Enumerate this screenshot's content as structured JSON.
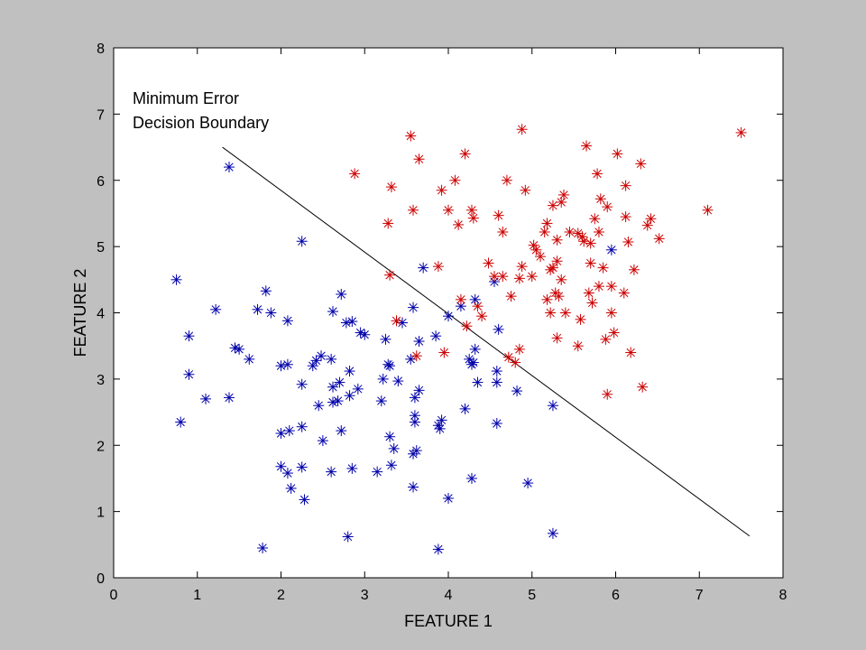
{
  "chart_data": {
    "type": "scatter",
    "title": "",
    "xlabel": "FEATURE 1",
    "ylabel": "FEATURE 2",
    "xlim": [
      0,
      8
    ],
    "ylim": [
      0,
      8
    ],
    "xticks": [
      0,
      1,
      2,
      3,
      4,
      5,
      6,
      7,
      8
    ],
    "yticks": [
      0,
      1,
      2,
      3,
      4,
      5,
      6,
      7,
      8
    ],
    "grid": false,
    "marker": "asterisk",
    "annotation": [
      "Minimum Error",
      "Decision Boundary"
    ],
    "boundary": {
      "x": [
        1.3,
        7.6
      ],
      "y": [
        6.5,
        0.63
      ]
    },
    "series": [
      {
        "color": "#0000aa",
        "points": [
          [
            0.75,
            4.5
          ],
          [
            0.8,
            2.35
          ],
          [
            0.9,
            3.65
          ],
          [
            0.9,
            3.07
          ],
          [
            1.1,
            2.7
          ],
          [
            1.22,
            4.05
          ],
          [
            1.38,
            2.72
          ],
          [
            1.45,
            3.47
          ],
          [
            1.5,
            3.45
          ],
          [
            1.62,
            3.3
          ],
          [
            1.38,
            6.2
          ],
          [
            1.72,
            4.05
          ],
          [
            1.82,
            4.33
          ],
          [
            1.88,
            4.0
          ],
          [
            2.0,
            3.2
          ],
          [
            2.08,
            3.22
          ],
          [
            2.08,
            3.88
          ],
          [
            2.0,
            2.18
          ],
          [
            2.1,
            2.22
          ],
          [
            2.0,
            1.68
          ],
          [
            2.08,
            1.58
          ],
          [
            2.12,
            1.35
          ],
          [
            2.25,
            1.67
          ],
          [
            2.28,
            1.18
          ],
          [
            2.25,
            2.28
          ],
          [
            2.25,
            2.92
          ],
          [
            2.25,
            5.08
          ],
          [
            2.38,
            3.2
          ],
          [
            2.42,
            3.28
          ],
          [
            2.48,
            3.35
          ],
          [
            2.45,
            2.6
          ],
          [
            2.5,
            2.07
          ],
          [
            2.6,
            3.3
          ],
          [
            2.62,
            4.02
          ],
          [
            2.62,
            2.88
          ],
          [
            2.62,
            2.65
          ],
          [
            2.68,
            2.67
          ],
          [
            2.7,
            2.95
          ],
          [
            2.72,
            2.22
          ],
          [
            2.72,
            4.28
          ],
          [
            2.78,
            3.85
          ],
          [
            2.82,
            3.12
          ],
          [
            2.82,
            2.75
          ],
          [
            2.85,
            3.87
          ],
          [
            2.92,
            2.85
          ],
          [
            2.95,
            3.7
          ],
          [
            3.0,
            3.67
          ],
          [
            2.6,
            1.6
          ],
          [
            2.85,
            1.65
          ],
          [
            2.8,
            0.62
          ],
          [
            1.78,
            0.45
          ],
          [
            3.15,
            1.6
          ],
          [
            3.2,
            2.67
          ],
          [
            3.22,
            3.0
          ],
          [
            3.25,
            3.6
          ],
          [
            3.28,
            3.22
          ],
          [
            3.3,
            3.2
          ],
          [
            3.3,
            2.13
          ],
          [
            3.32,
            1.7
          ],
          [
            3.35,
            1.95
          ],
          [
            3.4,
            2.97
          ],
          [
            3.45,
            3.85
          ],
          [
            3.55,
            3.3
          ],
          [
            3.58,
            4.08
          ],
          [
            3.6,
            2.45
          ],
          [
            3.6,
            2.35
          ],
          [
            3.6,
            2.72
          ],
          [
            3.62,
            1.92
          ],
          [
            3.58,
            1.37
          ],
          [
            3.58,
            1.87
          ],
          [
            3.65,
            2.83
          ],
          [
            3.65,
            3.57
          ],
          [
            3.7,
            4.68
          ],
          [
            3.85,
            3.65
          ],
          [
            3.88,
            2.3
          ],
          [
            3.9,
            2.25
          ],
          [
            3.92,
            2.38
          ],
          [
            4.0,
            3.95
          ],
          [
            4.0,
            1.2
          ],
          [
            3.88,
            0.43
          ],
          [
            4.15,
            4.1
          ],
          [
            4.2,
            2.55
          ],
          [
            4.25,
            3.3
          ],
          [
            4.28,
            3.22
          ],
          [
            4.3,
            3.25
          ],
          [
            4.32,
            3.45
          ],
          [
            4.35,
            2.95
          ],
          [
            4.32,
            4.2
          ],
          [
            4.28,
            1.5
          ],
          [
            4.55,
            4.47
          ],
          [
            4.58,
            3.12
          ],
          [
            4.58,
            2.95
          ],
          [
            4.58,
            2.33
          ],
          [
            4.6,
            3.75
          ],
          [
            4.82,
            2.82
          ],
          [
            4.95,
            1.43
          ],
          [
            5.25,
            2.6
          ],
          [
            5.25,
            0.67
          ],
          [
            5.95,
            4.95
          ]
        ]
      },
      {
        "color": "#cc0000",
        "points": [
          [
            2.88,
            6.1
          ],
          [
            3.28,
            5.35
          ],
          [
            3.3,
            4.57
          ],
          [
            3.32,
            5.9
          ],
          [
            3.38,
            3.88
          ],
          [
            3.55,
            6.67
          ],
          [
            3.58,
            5.55
          ],
          [
            3.62,
            3.35
          ],
          [
            3.65,
            6.32
          ],
          [
            3.88,
            4.7
          ],
          [
            3.92,
            5.85
          ],
          [
            3.95,
            3.4
          ],
          [
            4.0,
            5.55
          ],
          [
            4.08,
            6.0
          ],
          [
            4.12,
            5.33
          ],
          [
            4.15,
            4.2
          ],
          [
            4.2,
            6.4
          ],
          [
            4.22,
            3.8
          ],
          [
            4.28,
            5.55
          ],
          [
            4.3,
            5.43
          ],
          [
            4.35,
            4.1
          ],
          [
            4.4,
            3.95
          ],
          [
            4.48,
            4.75
          ],
          [
            4.55,
            4.55
          ],
          [
            4.6,
            5.47
          ],
          [
            4.65,
            5.22
          ],
          [
            4.65,
            4.55
          ],
          [
            4.7,
            6.0
          ],
          [
            4.72,
            3.33
          ],
          [
            4.75,
            4.25
          ],
          [
            4.8,
            3.25
          ],
          [
            4.85,
            3.45
          ],
          [
            4.85,
            4.52
          ],
          [
            4.88,
            4.7
          ],
          [
            4.88,
            6.77
          ],
          [
            4.92,
            5.85
          ],
          [
            5.0,
            4.55
          ],
          [
            5.02,
            5.02
          ],
          [
            5.05,
            4.95
          ],
          [
            5.1,
            4.85
          ],
          [
            5.15,
            5.22
          ],
          [
            5.18,
            5.35
          ],
          [
            5.18,
            4.2
          ],
          [
            5.22,
            4.0
          ],
          [
            5.22,
            4.65
          ],
          [
            5.25,
            5.62
          ],
          [
            5.25,
            4.68
          ],
          [
            5.28,
            4.3
          ],
          [
            5.3,
            5.1
          ],
          [
            5.3,
            4.78
          ],
          [
            5.3,
            3.62
          ],
          [
            5.32,
            4.25
          ],
          [
            5.35,
            4.5
          ],
          [
            5.35,
            5.67
          ],
          [
            5.38,
            5.78
          ],
          [
            5.4,
            4.0
          ],
          [
            5.45,
            5.22
          ],
          [
            5.55,
            5.2
          ],
          [
            5.55,
            3.5
          ],
          [
            5.58,
            3.9
          ],
          [
            5.6,
            5.15
          ],
          [
            5.62,
            5.08
          ],
          [
            5.65,
            6.52
          ],
          [
            5.68,
            4.3
          ],
          [
            5.7,
            5.05
          ],
          [
            5.7,
            4.75
          ],
          [
            5.72,
            4.15
          ],
          [
            5.75,
            5.42
          ],
          [
            5.78,
            6.1
          ],
          [
            5.8,
            5.22
          ],
          [
            5.8,
            4.4
          ],
          [
            5.82,
            5.72
          ],
          [
            5.85,
            4.68
          ],
          [
            5.88,
            3.6
          ],
          [
            5.9,
            5.6
          ],
          [
            5.9,
            2.77
          ],
          [
            5.95,
            4.4
          ],
          [
            5.95,
            4.0
          ],
          [
            5.98,
            3.7
          ],
          [
            6.02,
            6.4
          ],
          [
            6.1,
            4.3
          ],
          [
            6.12,
            5.92
          ],
          [
            6.12,
            5.45
          ],
          [
            6.15,
            5.07
          ],
          [
            6.18,
            3.4
          ],
          [
            6.22,
            4.65
          ],
          [
            6.3,
            6.25
          ],
          [
            6.32,
            2.88
          ],
          [
            6.38,
            5.32
          ],
          [
            6.42,
            5.42
          ],
          [
            6.52,
            5.12
          ],
          [
            7.1,
            5.55
          ],
          [
            7.5,
            6.72
          ]
        ]
      }
    ]
  }
}
